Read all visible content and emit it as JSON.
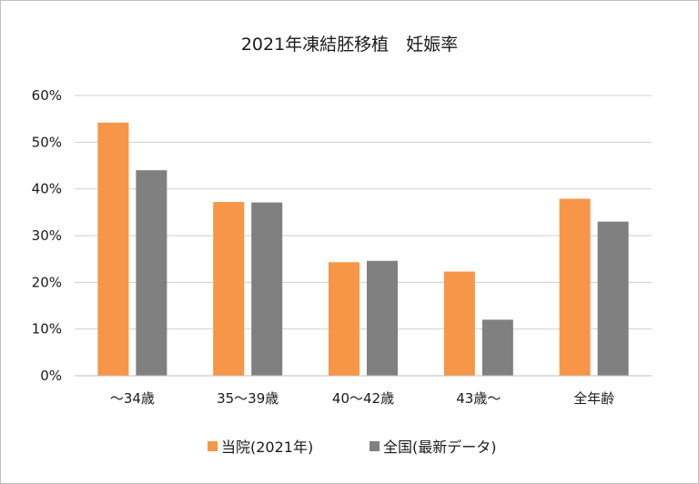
{
  "chart_data": {
    "type": "bar",
    "title": "2021年凍結胚移植　妊娠率",
    "categories": [
      "～34歳",
      "35～39歳",
      "40～42歳",
      "43歳～",
      "全年齢"
    ],
    "series": [
      {
        "name": "当院(2021年)",
        "color": "#F79646",
        "values": [
          54.2,
          37.2,
          24.3,
          22.3,
          37.9
        ]
      },
      {
        "name": "全国(最新データ)",
        "color": "#808080",
        "values": [
          44.0,
          37.1,
          24.6,
          12.0,
          33.0
        ]
      }
    ],
    "ylim": [
      0,
      60
    ],
    "yticks": [
      0,
      10,
      20,
      30,
      40,
      50,
      60
    ],
    "ytick_labels": [
      "0%",
      "10%",
      "20%",
      "30%",
      "40%",
      "50%",
      "60%"
    ],
    "grid": true,
    "legend_position": "bottom"
  }
}
